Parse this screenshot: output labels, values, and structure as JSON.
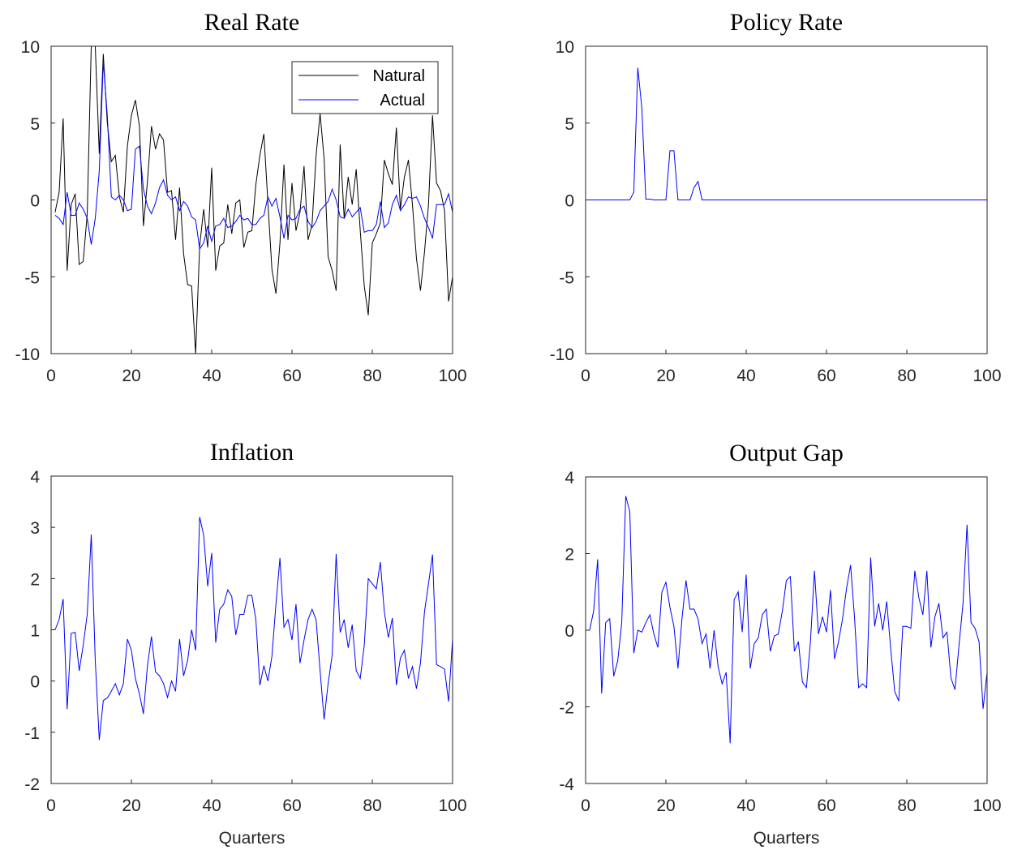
{
  "chart_data": [
    {
      "type": "line",
      "title": "Real Rate",
      "x": [
        1,
        2,
        3,
        4,
        5,
        6,
        7,
        8,
        9,
        10,
        11,
        12,
        13,
        14,
        15,
        16,
        17,
        18,
        19,
        20,
        21,
        22,
        23,
        24,
        25,
        26,
        27,
        28,
        29,
        30,
        31,
        32,
        33,
        34,
        35,
        36,
        37,
        38,
        39,
        40,
        41,
        42,
        43,
        44,
        45,
        46,
        47,
        48,
        49,
        50,
        51,
        52,
        53,
        54,
        55,
        56,
        57,
        58,
        59,
        60,
        61,
        62,
        63,
        64,
        65,
        66,
        67,
        68,
        69,
        70,
        71,
        72,
        73,
        74,
        75,
        76,
        77,
        78,
        79,
        80,
        81,
        82,
        83,
        84,
        85,
        86,
        87,
        88,
        89,
        90,
        91,
        92,
        93,
        94,
        95,
        96,
        97,
        98,
        99,
        100
      ],
      "series": [
        {
          "name": "Natural",
          "color": "#000000",
          "values": [
            -0.8,
            0.5,
            5.3,
            -4.6,
            -0.3,
            0.4,
            -4.2,
            -4.0,
            -0.9,
            10,
            10,
            3,
            9.5,
            5,
            2.5,
            2.9,
            0.2,
            -0.8,
            3.5,
            5.5,
            6.5,
            4.8,
            -1.7,
            1.2,
            4.8,
            3.3,
            4.3,
            3.9,
            0.5,
            0.6,
            -2.6,
            0.8,
            -3.5,
            -5.5,
            -5.6,
            -10,
            -3,
            -0.6,
            -3.1,
            2.1,
            -4.6,
            -3.0,
            -2.8,
            -0.3,
            -2.2,
            -0.2,
            0.0,
            -3.1,
            -2.1,
            -2.0,
            1.0,
            2.9,
            4.3,
            -0.2,
            -4.5,
            -6.1,
            -2.8,
            2.3,
            -2.6,
            1.1,
            -2.0,
            -0.8,
            2.2,
            -2.6,
            -1.6,
            2.9,
            5.6,
            2.7,
            -3.7,
            -4.6,
            -5.9,
            3.6,
            -1.2,
            1.5,
            -0.3,
            2.0,
            -2.0,
            -5.6,
            -7.5,
            -2.8,
            -2.2,
            -1.5,
            2.6,
            1.7,
            1.0,
            4.7,
            -0.6,
            1.5,
            2.6,
            -0.3,
            -3.8,
            -5.9,
            -3.4,
            -0.3,
            5.5,
            1.1,
            0.6,
            -0.7,
            -6.6,
            -5.0
          ]
        },
        {
          "name": "Actual",
          "color": "#0000ff",
          "values": [
            -1.0,
            -1.2,
            -1.6,
            0.5,
            -1.0,
            -1.0,
            -0.2,
            -0.6,
            -1.2,
            -2.9,
            -1.2,
            1.9,
            9.0,
            5.5,
            0.2,
            0.0,
            0.3,
            0.0,
            -0.7,
            -0.6,
            3.3,
            3.5,
            0.7,
            -0.4,
            -0.9,
            -0.2,
            0.8,
            1.3,
            0.3,
            0.0,
            0.2,
            -0.7,
            -0.1,
            -0.4,
            -1.1,
            -1.3,
            -3.2,
            -2.8,
            -1.7,
            -2.7,
            -1.7,
            -1.6,
            -1.2,
            -1.8,
            -1.7,
            -1.4,
            -1.0,
            -1.3,
            -1.2,
            -1.6,
            -1.6,
            -1.2,
            -1.0,
            0.2,
            -0.4,
            0.1,
            -1.1,
            -2.5,
            -1.0,
            -1.3,
            -1.2,
            -0.6,
            -0.4,
            -1.4,
            -1.8,
            -1.4,
            -0.7,
            -0.4,
            -0.1,
            0.7,
            0.0,
            -1.1,
            -1.2,
            -0.6,
            -1.1,
            -0.8,
            -0.5,
            -2.1,
            -2.0,
            -2.0,
            -1.6,
            -0.1,
            -1.8,
            -1.5,
            -0.3,
            0.3,
            -0.7,
            -0.3,
            0.2,
            0.1,
            0.2,
            -0.4,
            -1.2,
            -1.8,
            -2.5,
            -0.3,
            -0.3,
            -0.3,
            0.4,
            -0.8
          ]
        }
      ],
      "xlim": [
        0,
        100
      ],
      "ylim": [
        -10,
        10
      ],
      "xticks": [
        0,
        20,
        40,
        60,
        80,
        100
      ],
      "yticks": [
        -10,
        -5,
        0,
        5,
        10
      ],
      "legend": "northeast"
    },
    {
      "type": "line",
      "title": "Policy Rate",
      "x": [
        1,
        2,
        3,
        4,
        5,
        6,
        7,
        8,
        9,
        10,
        11,
        12,
        13,
        14,
        15,
        16,
        17,
        18,
        19,
        20,
        21,
        22,
        23,
        24,
        25,
        26,
        27,
        28,
        29,
        30,
        31,
        32,
        33,
        34,
        35,
        36,
        37,
        38,
        39,
        40,
        41,
        42,
        43,
        44,
        45,
        46,
        47,
        48,
        49,
        50,
        51,
        52,
        53,
        54,
        55,
        56,
        57,
        58,
        59,
        60,
        61,
        62,
        63,
        64,
        65,
        66,
        67,
        68,
        69,
        70,
        71,
        72,
        73,
        74,
        75,
        76,
        77,
        78,
        79,
        80,
        81,
        82,
        83,
        84,
        85,
        86,
        87,
        88,
        89,
        90,
        91,
        92,
        93,
        94,
        95,
        96,
        97,
        98,
        99,
        100
      ],
      "series": [
        {
          "color": "#0000ff",
          "values": [
            0,
            0,
            0,
            0,
            0,
            0,
            0,
            0,
            0,
            0,
            0,
            0.5,
            8.6,
            6,
            0.05,
            0.05,
            0,
            0,
            0,
            0,
            3.2,
            3.2,
            0,
            0,
            0,
            0,
            0.8,
            1.2,
            0,
            0,
            0,
            0,
            0,
            0,
            0,
            0,
            0,
            0,
            0,
            0,
            0,
            0,
            0,
            0,
            0,
            0,
            0,
            0,
            0,
            0,
            0,
            0,
            0,
            0,
            0,
            0,
            0,
            0,
            0,
            0,
            0,
            0,
            0,
            0,
            0,
            0,
            0,
            0,
            0,
            0,
            0,
            0,
            0,
            0,
            0,
            0,
            0,
            0,
            0,
            0,
            0,
            0,
            0,
            0,
            0,
            0,
            0,
            0,
            0,
            0,
            0,
            0,
            0,
            0,
            0,
            0,
            0,
            0,
            0,
            0
          ]
        }
      ],
      "xlim": [
        0,
        100
      ],
      "ylim": [
        -10,
        10
      ],
      "xticks": [
        0,
        20,
        40,
        60,
        80,
        100
      ],
      "yticks": [
        -10,
        -5,
        0,
        5,
        10
      ]
    },
    {
      "type": "line",
      "title": "Inflation",
      "xlabel": "Quarters",
      "x": [
        1,
        2,
        3,
        4,
        5,
        6,
        7,
        8,
        9,
        10,
        11,
        12,
        13,
        14,
        15,
        16,
        17,
        18,
        19,
        20,
        21,
        22,
        23,
        24,
        25,
        26,
        27,
        28,
        29,
        30,
        31,
        32,
        33,
        34,
        35,
        36,
        37,
        38,
        39,
        40,
        41,
        42,
        43,
        44,
        45,
        46,
        47,
        48,
        49,
        50,
        51,
        52,
        53,
        54,
        55,
        56,
        57,
        58,
        59,
        60,
        61,
        62,
        63,
        64,
        65,
        66,
        67,
        68,
        69,
        70,
        71,
        72,
        73,
        74,
        75,
        76,
        77,
        78,
        79,
        80,
        81,
        82,
        83,
        84,
        85,
        86,
        87,
        88,
        89,
        90,
        91,
        92,
        93,
        94,
        95,
        96,
        97,
        98,
        99,
        100
      ],
      "series": [
        {
          "color": "#0000ff",
          "values": [
            1.0,
            1.2,
            1.6,
            -0.55,
            0.93,
            0.95,
            0.2,
            0.7,
            1.3,
            2.86,
            0.4,
            -1.15,
            -0.38,
            -0.33,
            -0.2,
            -0.05,
            -0.27,
            -0.05,
            0.82,
            0.6,
            0.05,
            -0.25,
            -0.64,
            0.3,
            0.87,
            0.18,
            0.1,
            -0.05,
            -0.32,
            0.0,
            -0.2,
            0.82,
            0.1,
            0.4,
            1.0,
            0.6,
            3.2,
            2.85,
            1.85,
            2.5,
            0.75,
            1.4,
            1.5,
            1.78,
            1.65,
            0.9,
            1.3,
            1.3,
            1.67,
            1.67,
            1.2,
            -0.08,
            0.3,
            0.0,
            0.48,
            1.5,
            2.4,
            1.05,
            1.2,
            0.8,
            1.5,
            0.35,
            0.8,
            1.2,
            1.4,
            1.2,
            0.2,
            -0.75,
            -0.05,
            0.5,
            2.48,
            0.95,
            1.2,
            0.65,
            1.1,
            0.2,
            0.05,
            0.7,
            2.0,
            1.9,
            1.8,
            2.32,
            1.35,
            0.85,
            1.23,
            -0.08,
            0.45,
            0.6,
            0.05,
            0.28,
            -0.15,
            0.35,
            1.35,
            1.9,
            2.47,
            0.32,
            0.28,
            0.23,
            -0.4,
            0.82
          ]
        }
      ],
      "xlim": [
        0,
        100
      ],
      "ylim": [
        -2,
        4
      ],
      "xticks": [
        0,
        20,
        40,
        60,
        80,
        100
      ],
      "yticks": [
        -2,
        -1,
        0,
        1,
        2,
        3,
        4
      ]
    },
    {
      "type": "line",
      "title": "Output Gap",
      "xlabel": "Quarters",
      "x": [
        1,
        2,
        3,
        4,
        5,
        6,
        7,
        8,
        9,
        10,
        11,
        12,
        13,
        14,
        15,
        16,
        17,
        18,
        19,
        20,
        21,
        22,
        23,
        24,
        25,
        26,
        27,
        28,
        29,
        30,
        31,
        32,
        33,
        34,
        35,
        36,
        37,
        38,
        39,
        40,
        41,
        42,
        43,
        44,
        45,
        46,
        47,
        48,
        49,
        50,
        51,
        52,
        53,
        54,
        55,
        56,
        57,
        58,
        59,
        60,
        61,
        62,
        63,
        64,
        65,
        66,
        67,
        68,
        69,
        70,
        71,
        72,
        73,
        74,
        75,
        76,
        77,
        78,
        79,
        80,
        81,
        82,
        83,
        84,
        85,
        86,
        87,
        88,
        89,
        90,
        91,
        92,
        93,
        94,
        95,
        96,
        97,
        98,
        99,
        100
      ],
      "series": [
        {
          "color": "#0000ff",
          "values": [
            0,
            0.5,
            1.85,
            -1.65,
            0.2,
            0.3,
            -1.2,
            -0.8,
            0.2,
            3.5,
            3.1,
            -0.6,
            0.0,
            -0.05,
            0.2,
            0.4,
            -0.1,
            -0.45,
            1.0,
            1.25,
            0.6,
            0.1,
            -1.0,
            0.3,
            1.3,
            0.55,
            0.55,
            0.3,
            -0.35,
            -0.1,
            -1.0,
            0.0,
            -0.95,
            -1.4,
            -1.1,
            -2.95,
            0.8,
            1.0,
            -0.05,
            1.45,
            -1.0,
            -0.35,
            -0.2,
            0.4,
            0.55,
            -0.55,
            -0.15,
            -0.1,
            0.5,
            1.3,
            1.4,
            -0.55,
            -0.3,
            -1.35,
            -1.5,
            -0.3,
            1.55,
            -0.1,
            0.35,
            -0.05,
            1.05,
            -0.75,
            -0.3,
            0.3,
            1.1,
            1.7,
            0.3,
            -1.5,
            -1.4,
            -1.5,
            1.9,
            0.1,
            0.7,
            0.0,
            0.75,
            -0.5,
            -1.6,
            -1.85,
            0.1,
            0.1,
            0.05,
            1.55,
            0.85,
            0.4,
            1.55,
            -0.45,
            0.35,
            0.7,
            -0.2,
            -0.05,
            -1.25,
            -1.55,
            -0.4,
            0.7,
            2.75,
            0.2,
            0.05,
            -0.3,
            -2.05,
            -1.1
          ]
        }
      ],
      "xlim": [
        0,
        100
      ],
      "ylim": [
        -4,
        4
      ],
      "xticks": [
        0,
        20,
        40,
        60,
        80,
        100
      ],
      "yticks": [
        -4,
        -2,
        0,
        2,
        4
      ]
    }
  ]
}
